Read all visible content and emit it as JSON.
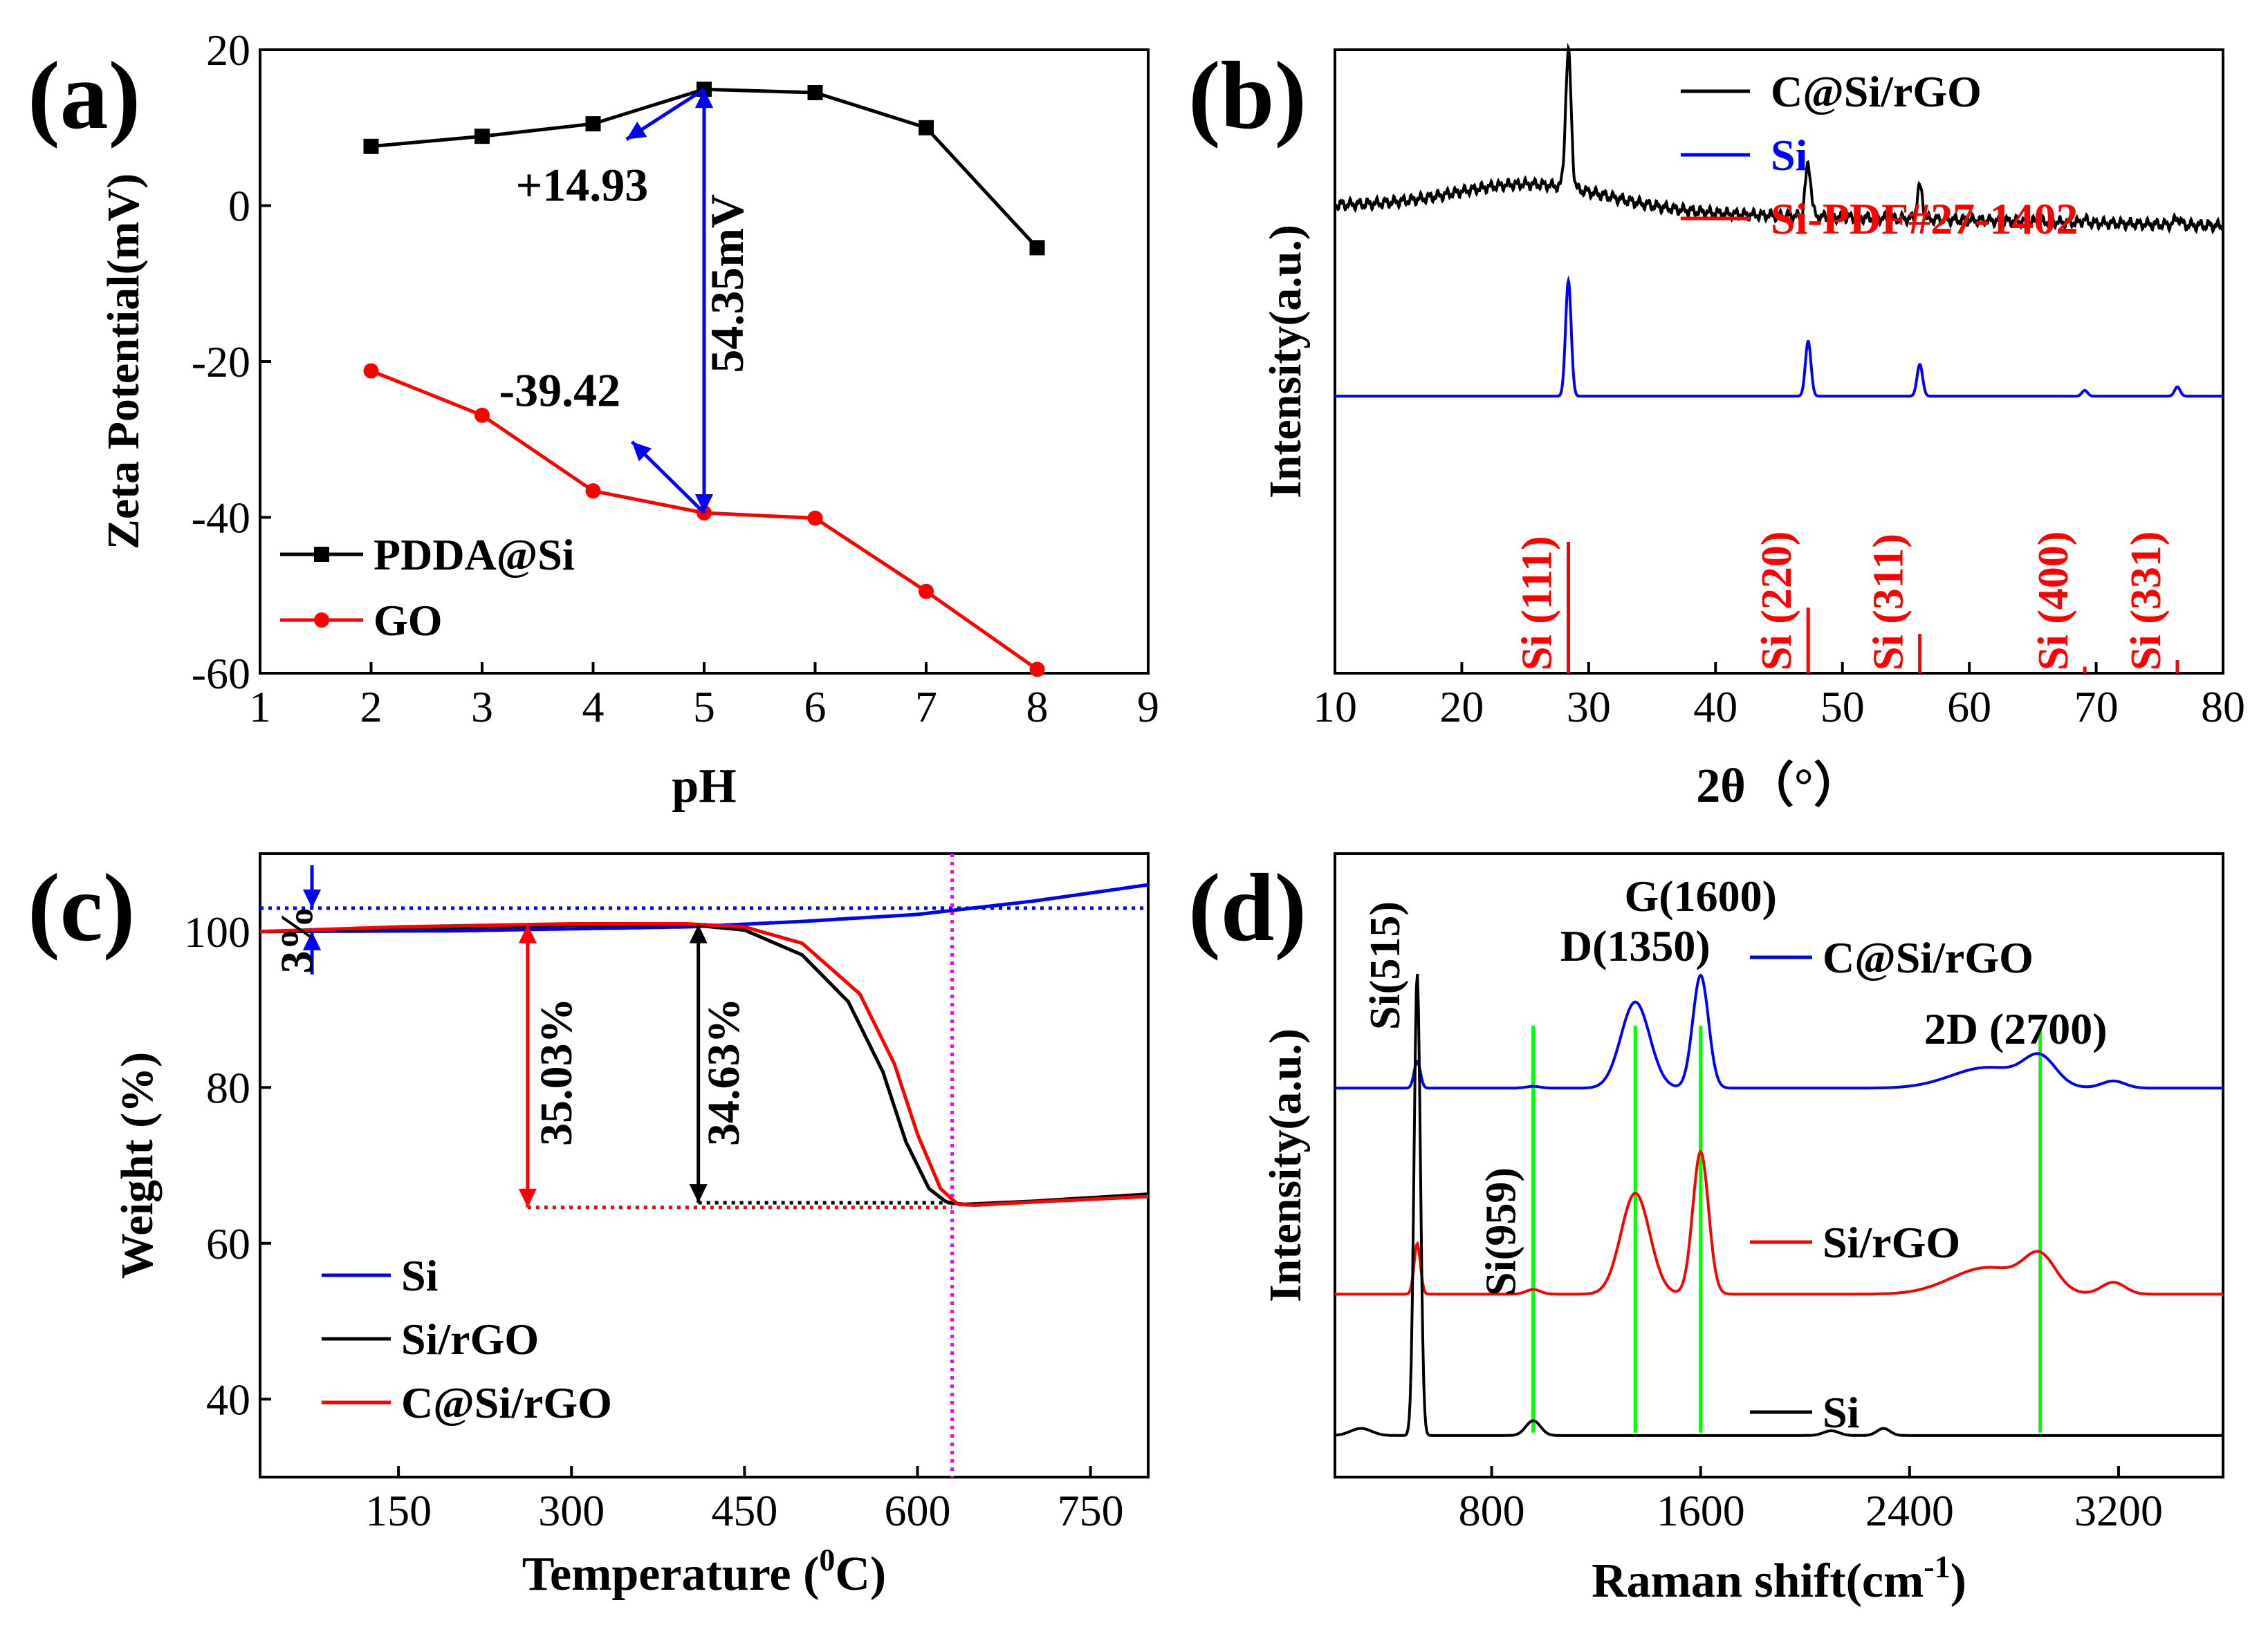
{
  "chart_data": [
    {
      "panel": "a",
      "panel_label": "(a)",
      "type": "line",
      "xlabel": "pH",
      "ylabel": "Zeta Potential(mV)",
      "xlim": [
        1,
        9
      ],
      "ylim": [
        -60,
        20
      ],
      "xticks": [
        1,
        2,
        3,
        4,
        5,
        6,
        7,
        8,
        9
      ],
      "yticks": [
        20,
        0,
        -20,
        -40,
        -60
      ],
      "x": [
        2,
        3,
        4,
        5,
        6,
        7,
        8
      ],
      "series": [
        {
          "name": "PDDA@Si",
          "color": "#000000",
          "marker": "square",
          "values": [
            7.6,
            8.9,
            10.5,
            14.93,
            14.5,
            10.0,
            -5.4
          ]
        },
        {
          "name": "GO",
          "color": "#ff0000",
          "marker": "circle",
          "values": [
            -21.2,
            -26.9,
            -36.6,
            -39.42,
            -40.1,
            -49.5,
            -59.5
          ]
        }
      ],
      "annotations": [
        {
          "text": "+14.93",
          "x": 3.9,
          "y": 0.6
        },
        {
          "text": "-39.42",
          "x": 3.7,
          "y": -25.7
        },
        {
          "text": "54.35mV",
          "x": 5.35,
          "y": -10
        }
      ],
      "legend": "lower-left"
    },
    {
      "panel": "b",
      "panel_label": "(b)",
      "type": "line",
      "xlabel": "2θ（°）",
      "ylabel": "Intensity(a.u.)",
      "xlim": [
        10,
        80
      ],
      "xticks": [
        10,
        20,
        30,
        40,
        50,
        60,
        70,
        80
      ],
      "series": [
        {
          "name": "C@Si/rGO",
          "color": "#000000",
          "baseline": 8.1,
          "broad_hump": {
            "center": 25.5,
            "height": 0.45,
            "width": 6
          },
          "peaks": [
            [
              28.4,
              2.35
            ],
            [
              47.3,
              0.9
            ],
            [
              56.1,
              0.55
            ],
            [
              69.1,
              0.05
            ],
            [
              76.4,
              0.12
            ]
          ]
        },
        {
          "name": "Si",
          "color": "#0000ff",
          "baseline": 4.8,
          "peaks": [
            [
              28.4,
              2.0
            ],
            [
              47.3,
              0.95
            ],
            [
              56.1,
              0.55
            ],
            [
              69.1,
              0.1
            ],
            [
              76.4,
              0.16
            ]
          ]
        },
        {
          "name": "Si-PDF#27-1402",
          "color": "#ff0000",
          "type": "stick",
          "peaks": [
            [
              28.4,
              2.0
            ],
            [
              47.3,
              1.0
            ],
            [
              56.1,
              0.6
            ],
            [
              69.1,
              0.1
            ],
            [
              76.4,
              0.2
            ]
          ]
        }
      ],
      "peak_labels": [
        {
          "text": "Si (111)",
          "x": 28.4
        },
        {
          "text": "Si (220)",
          "x": 47.3
        },
        {
          "text": "Si (311)",
          "x": 56.1
        },
        {
          "text": "Si (400)",
          "x": 69.1
        },
        {
          "text": "Si (331)",
          "x": 76.4
        }
      ],
      "legend": "top-right"
    },
    {
      "panel": "c",
      "panel_label": "(c)",
      "type": "line",
      "xlabel": "Temperature (⁰C)",
      "xlabel_main": "Temperature (",
      "xlabel_sup": "0",
      "xlabel_end": "C)",
      "ylabel": "Weight (%)",
      "xlim": [
        30,
        800
      ],
      "ylim": [
        30,
        110
      ],
      "xticks": [
        150,
        300,
        450,
        600,
        750
      ],
      "yticks": [
        40,
        60,
        80,
        100
      ],
      "series": [
        {
          "name": "Si",
          "color": "#0000ff",
          "x": [
            30,
            200,
            400,
            500,
            600,
            700,
            800
          ],
          "values": [
            100.0,
            100.1,
            100.6,
            101.3,
            102.2,
            103.9,
            106.0
          ]
        },
        {
          "name": "Si/rGO",
          "color": "#000000",
          "x": [
            30,
            150,
            300,
            400,
            450,
            500,
            540,
            570,
            590,
            610,
            625,
            640,
            700,
            800
          ],
          "values": [
            100.0,
            100.4,
            100.8,
            100.9,
            100.2,
            97.0,
            91.0,
            82.0,
            73.0,
            67.0,
            65.3,
            65.0,
            65.4,
            66.3
          ]
        },
        {
          "name": "C@Si/rGO",
          "color": "#ff0000",
          "x": [
            30,
            150,
            300,
            400,
            450,
            500,
            550,
            580,
            600,
            620,
            635,
            650,
            700,
            800
          ],
          "values": [
            100.0,
            100.6,
            101.0,
            101.0,
            100.6,
            98.5,
            92.0,
            83.0,
            74.0,
            67.0,
            65.0,
            64.9,
            65.3,
            66.0
          ]
        }
      ],
      "reference_lines": [
        {
          "type": "hline",
          "y": 103,
          "color": "#0000ff",
          "style": "dotted"
        },
        {
          "type": "hline",
          "y": 64.6,
          "color": "#ff0000",
          "style": "dotted",
          "x_from": 262
        },
        {
          "type": "hline",
          "y": 65.2,
          "color": "#000000",
          "style": "dotted",
          "x_from": 410
        },
        {
          "type": "vline",
          "x": 630,
          "color": "#ff00ff",
          "style": "dotted"
        }
      ],
      "annotations": [
        {
          "text": "3%",
          "x": 75,
          "y": 99
        },
        {
          "text": "35.03%",
          "x": 300,
          "y": 82
        },
        {
          "text": "34.63%",
          "x": 445,
          "y": 82
        }
      ],
      "legend": "lower-left"
    },
    {
      "panel": "d",
      "panel_label": "(d)",
      "type": "line",
      "xlabel": "Raman shift(cm",
      "xlabel_sup": "-1",
      "xlabel_end": ")",
      "ylabel": "Intensity(a.u.)",
      "xlim": [
        200,
        3600
      ],
      "xticks": [
        800,
        1600,
        2400,
        3200
      ],
      "series": [
        {
          "name": "C@Si/rGO",
          "color": "#0000ff",
          "baseline": 6.55,
          "peaks": [
            [
              515,
              0.45
            ],
            [
              959,
              0.03
            ],
            [
              1350,
              1.45
            ],
            [
              1600,
              1.9
            ],
            [
              2700,
              0.35
            ],
            [
              2900,
              0.45
            ],
            [
              3180,
              0.12
            ]
          ]
        },
        {
          "name": "Si/rGO",
          "color": "#ff0000",
          "baseline": 3.08,
          "peaks": [
            [
              515,
              0.85
            ],
            [
              959,
              0.08
            ],
            [
              1350,
              1.7
            ],
            [
              1600,
              2.4
            ],
            [
              2700,
              0.45
            ],
            [
              2900,
              0.55
            ],
            [
              3180,
              0.2
            ]
          ]
        },
        {
          "name": "Si",
          "color": "#000000",
          "baseline": 0.7,
          "peaks": [
            [
              515,
              7.8
            ],
            [
              959,
              0.25
            ],
            [
              300,
              0.12
            ],
            [
              2100,
              0.08
            ],
            [
              2300,
              0.12
            ]
          ]
        }
      ],
      "peak_labels": [
        {
          "text": "Si(515)",
          "x": 515
        },
        {
          "text": "Si(959)",
          "x": 959
        },
        {
          "text": "D(1350)",
          "x": 1350
        },
        {
          "text": "G(1600)",
          "x": 1600
        },
        {
          "text": "2D (2700)",
          "x": 2700
        }
      ],
      "marker_lines": [
        959,
        1350,
        1600,
        2900
      ]
    }
  ]
}
